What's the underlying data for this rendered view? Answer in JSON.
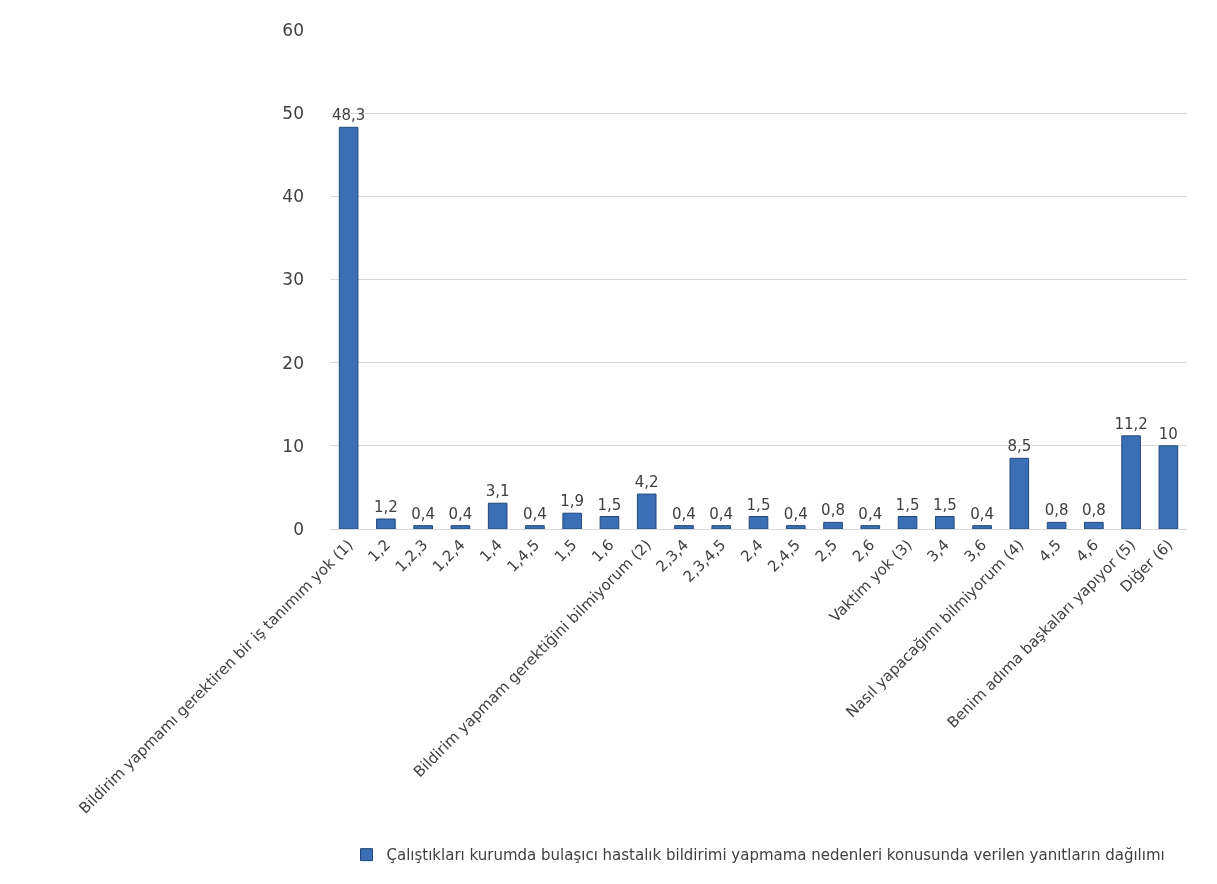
{
  "chart_data": {
    "type": "bar",
    "categories": [
      "Bildirim yapmamı gerektiren bir iş tanımım yok (1)",
      "1,2",
      "1,2,3",
      "1,2,4",
      "1,4",
      "1,4,5",
      "1,5",
      "1,6",
      "Bildirim yapmam gerektiğini bilmiyorum (2)",
      "2,3,4",
      "2,3,4,5",
      "2,4",
      "2,4,5",
      "2,5",
      "2,6",
      "Vaktim yok (3)",
      "3,4",
      "3,6",
      "Nasıl yapacağımı bilmiyorum (4)",
      "4,5",
      "4,6",
      "Benim adıma başkaları yapıyor (5)",
      "Diğer (6)"
    ],
    "series": [
      {
        "name": "Çalıştıkları kurumda bulaşıcı hastalık bildirimi yapmama nedenleri konusunda verilen yanıtların dağılımı",
        "color": "#3a6eb5",
        "values": [
          48.3,
          1.2,
          0.4,
          0.4,
          3.1,
          0.4,
          1.9,
          1.5,
          4.2,
          0.4,
          0.4,
          1.5,
          0.4,
          0.8,
          0.4,
          1.5,
          1.5,
          0.4,
          8.5,
          0.8,
          0.8,
          11.2,
          10
        ],
        "value_labels": [
          "48,3",
          "1,2",
          "0,4",
          "0,4",
          "3,1",
          "0,4",
          "1,9",
          "1,5",
          "4,2",
          "0,4",
          "0,4",
          "1,5",
          "0,4",
          "0,8",
          "0,4",
          "1,5",
          "1,5",
          "0,4",
          "8,5",
          "0,8",
          "0,8",
          "11,2",
          "10"
        ]
      }
    ],
    "ylim": [
      0,
      60
    ],
    "yticks": [
      0,
      10,
      20,
      30,
      40,
      50,
      60
    ],
    "grid": "y",
    "legend": "bottom"
  }
}
